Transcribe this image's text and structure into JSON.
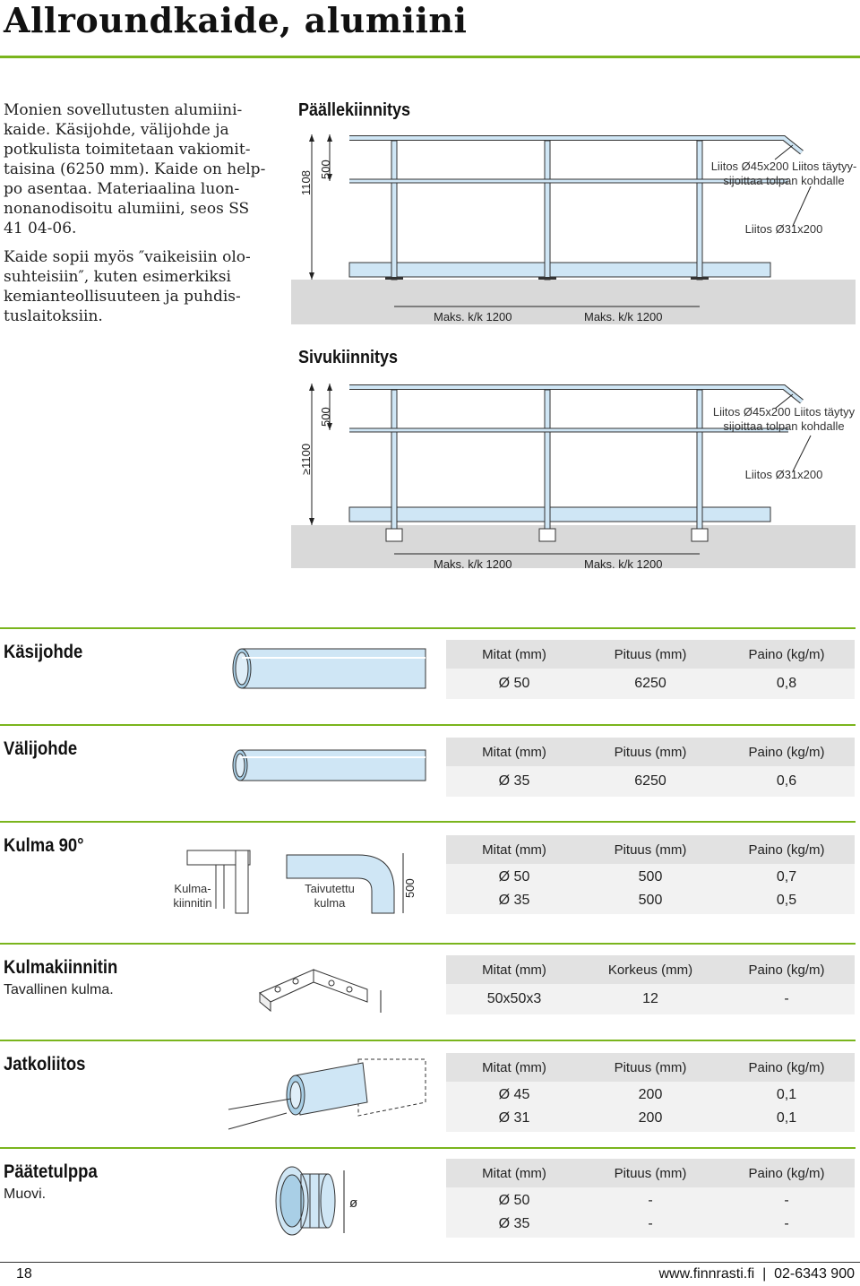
{
  "title": "Allroundkaide, alumiini",
  "intro": {
    "p1": "Monien sovellutusten alumiini­kaide. Käsijohde, välijohde ja potkulista toimitetaan vakiomit­taisina (6250 mm). Kaide on help­po asentaa. Materiaalina luon­nonanodisoitu alumiini, seos SS 41 04-06.",
    "p2": "Kaide sopii myös ″vaikeisiin olo­suhteisiin″, kuten esimerkiksi kemianteollisuuteen ja puhdis­tuslaitoksiin."
  },
  "diagram_top": {
    "title": "Päällekiinnitys",
    "dim_height": "1108",
    "dim_mid": "500",
    "note_1": "Liitos Ø45x200 Liitos täytyy-\nsijoittaa tolpan kohdalle",
    "note_2": "Liitos Ø31x200",
    "spacing_1": "Maks. k/k 1200",
    "spacing_2": "Maks. k/k 1200"
  },
  "diagram_side": {
    "title": "Sivukiinnitys",
    "dim_height": "≥1100",
    "dim_mid": "500",
    "note_1": "Liitos Ø45x200 Liitos täytyy\nsijoittaa tolpan kohdalle",
    "note_2": "Liitos Ø31x200",
    "spacing_1": "Maks. k/k 1200",
    "spacing_2": "Maks. k/k 1200"
  },
  "sections": {
    "kasijohde": {
      "title": "Käsijohde",
      "headers": [
        "Mitat (mm)",
        "Pituus (mm)",
        "Paino (kg/m)"
      ],
      "rows": [
        [
          "Ø 50",
          "6250",
          "0,8"
        ]
      ]
    },
    "valijohde": {
      "title": "Välijohde",
      "headers": [
        "Mitat (mm)",
        "Pituus (mm)",
        "Paino (kg/m)"
      ],
      "rows": [
        [
          "Ø 35",
          "6250",
          "0,6"
        ]
      ]
    },
    "kulma": {
      "title": "Kulma 90°",
      "label_a": "Kulma-\nkiinnitin",
      "label_b": "Taivutettu\nkulma",
      "dim": "500",
      "headers": [
        "Mitat (mm)",
        "Pituus (mm)",
        "Paino (kg/m)"
      ],
      "rows": [
        [
          "Ø 50",
          "500",
          "0,7"
        ],
        [
          "Ø 35",
          "500",
          "0,5"
        ]
      ]
    },
    "kulmakiinnitin": {
      "title": "Kulmakiinnitin",
      "subtitle": "Tavallinen kulma.",
      "headers": [
        "Mitat (mm)",
        "Korkeus (mm)",
        "Paino (kg/m)"
      ],
      "rows": [
        [
          "50x50x3",
          "12",
          "-"
        ]
      ]
    },
    "jatkoliitos": {
      "title": "Jatkoliitos",
      "headers": [
        "Mitat (mm)",
        "Pituus (mm)",
        "Paino (kg/m)"
      ],
      "rows": [
        [
          "Ø 45",
          "200",
          "0,1"
        ],
        [
          "Ø 31",
          "200",
          "0,1"
        ]
      ]
    },
    "paatetulppa": {
      "title": "Päätetulppa",
      "subtitle": "Muovi.",
      "dim": "ø",
      "headers": [
        "Mitat (mm)",
        "Pituus (mm)",
        "Paino (kg/m)"
      ],
      "rows": [
        [
          "Ø 50",
          "-",
          "-"
        ],
        [
          "Ø 35",
          "-",
          "-"
        ]
      ]
    }
  },
  "footer": {
    "page": "18",
    "site": "www.finnrasti.fi  |  02-6343 900"
  },
  "colors": {
    "accent": "#7ab51d",
    "tube": "#cfe6f5",
    "floor": "#d9d9d9",
    "header_bg": "#e2e2e2",
    "row_bg": "#f2f2f2"
  }
}
